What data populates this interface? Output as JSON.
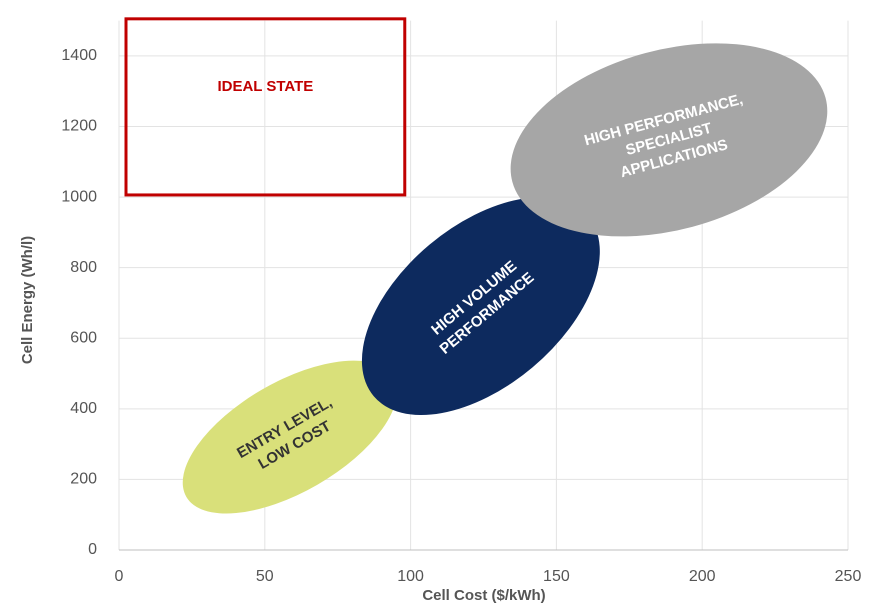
{
  "chart_data": {
    "type": "region",
    "x_label": "Cell Cost ($/kWh)",
    "y_label": "Cell Energy (Wh/l)",
    "xlim": [
      0,
      250
    ],
    "xticks": [
      0,
      50,
      100,
      150,
      200,
      250
    ],
    "ylim": [
      0,
      1500
    ],
    "yticks": [
      0,
      200,
      400,
      600,
      800,
      1000,
      1200,
      1400
    ],
    "grid": true,
    "box": {
      "label": "IDEAL STATE",
      "color": "#c00000",
      "x": [
        2.4,
        98
      ],
      "y": [
        1006,
        1505
      ]
    },
    "regions": [
      {
        "lines": [
          "ENTRY LEVEL,",
          "LOW COST"
        ],
        "color": "#d9e07a",
        "text_color": "#333333",
        "x": 58.6,
        "y": 320,
        "x_radius": 41,
        "y_radius": 156,
        "angle": -30
      },
      {
        "lines": [
          "HIGH VOLUME",
          "PERFORMANCE"
        ],
        "color": "#0d2a5e",
        "text_color": "#ffffff",
        "x": 124.1,
        "y": 691,
        "x_radius": 48,
        "y_radius": 227,
        "angle": -40
      },
      {
        "lines": [
          "HIGH PERFORMANCE,",
          "SPECIALIST",
          "APPLICATIONS"
        ],
        "color": "#a6a6a6",
        "text_color": "#ffffff",
        "x": 188.6,
        "y": 1162,
        "x_radius": 55.6,
        "y_radius": 255,
        "angle": -15
      }
    ]
  }
}
